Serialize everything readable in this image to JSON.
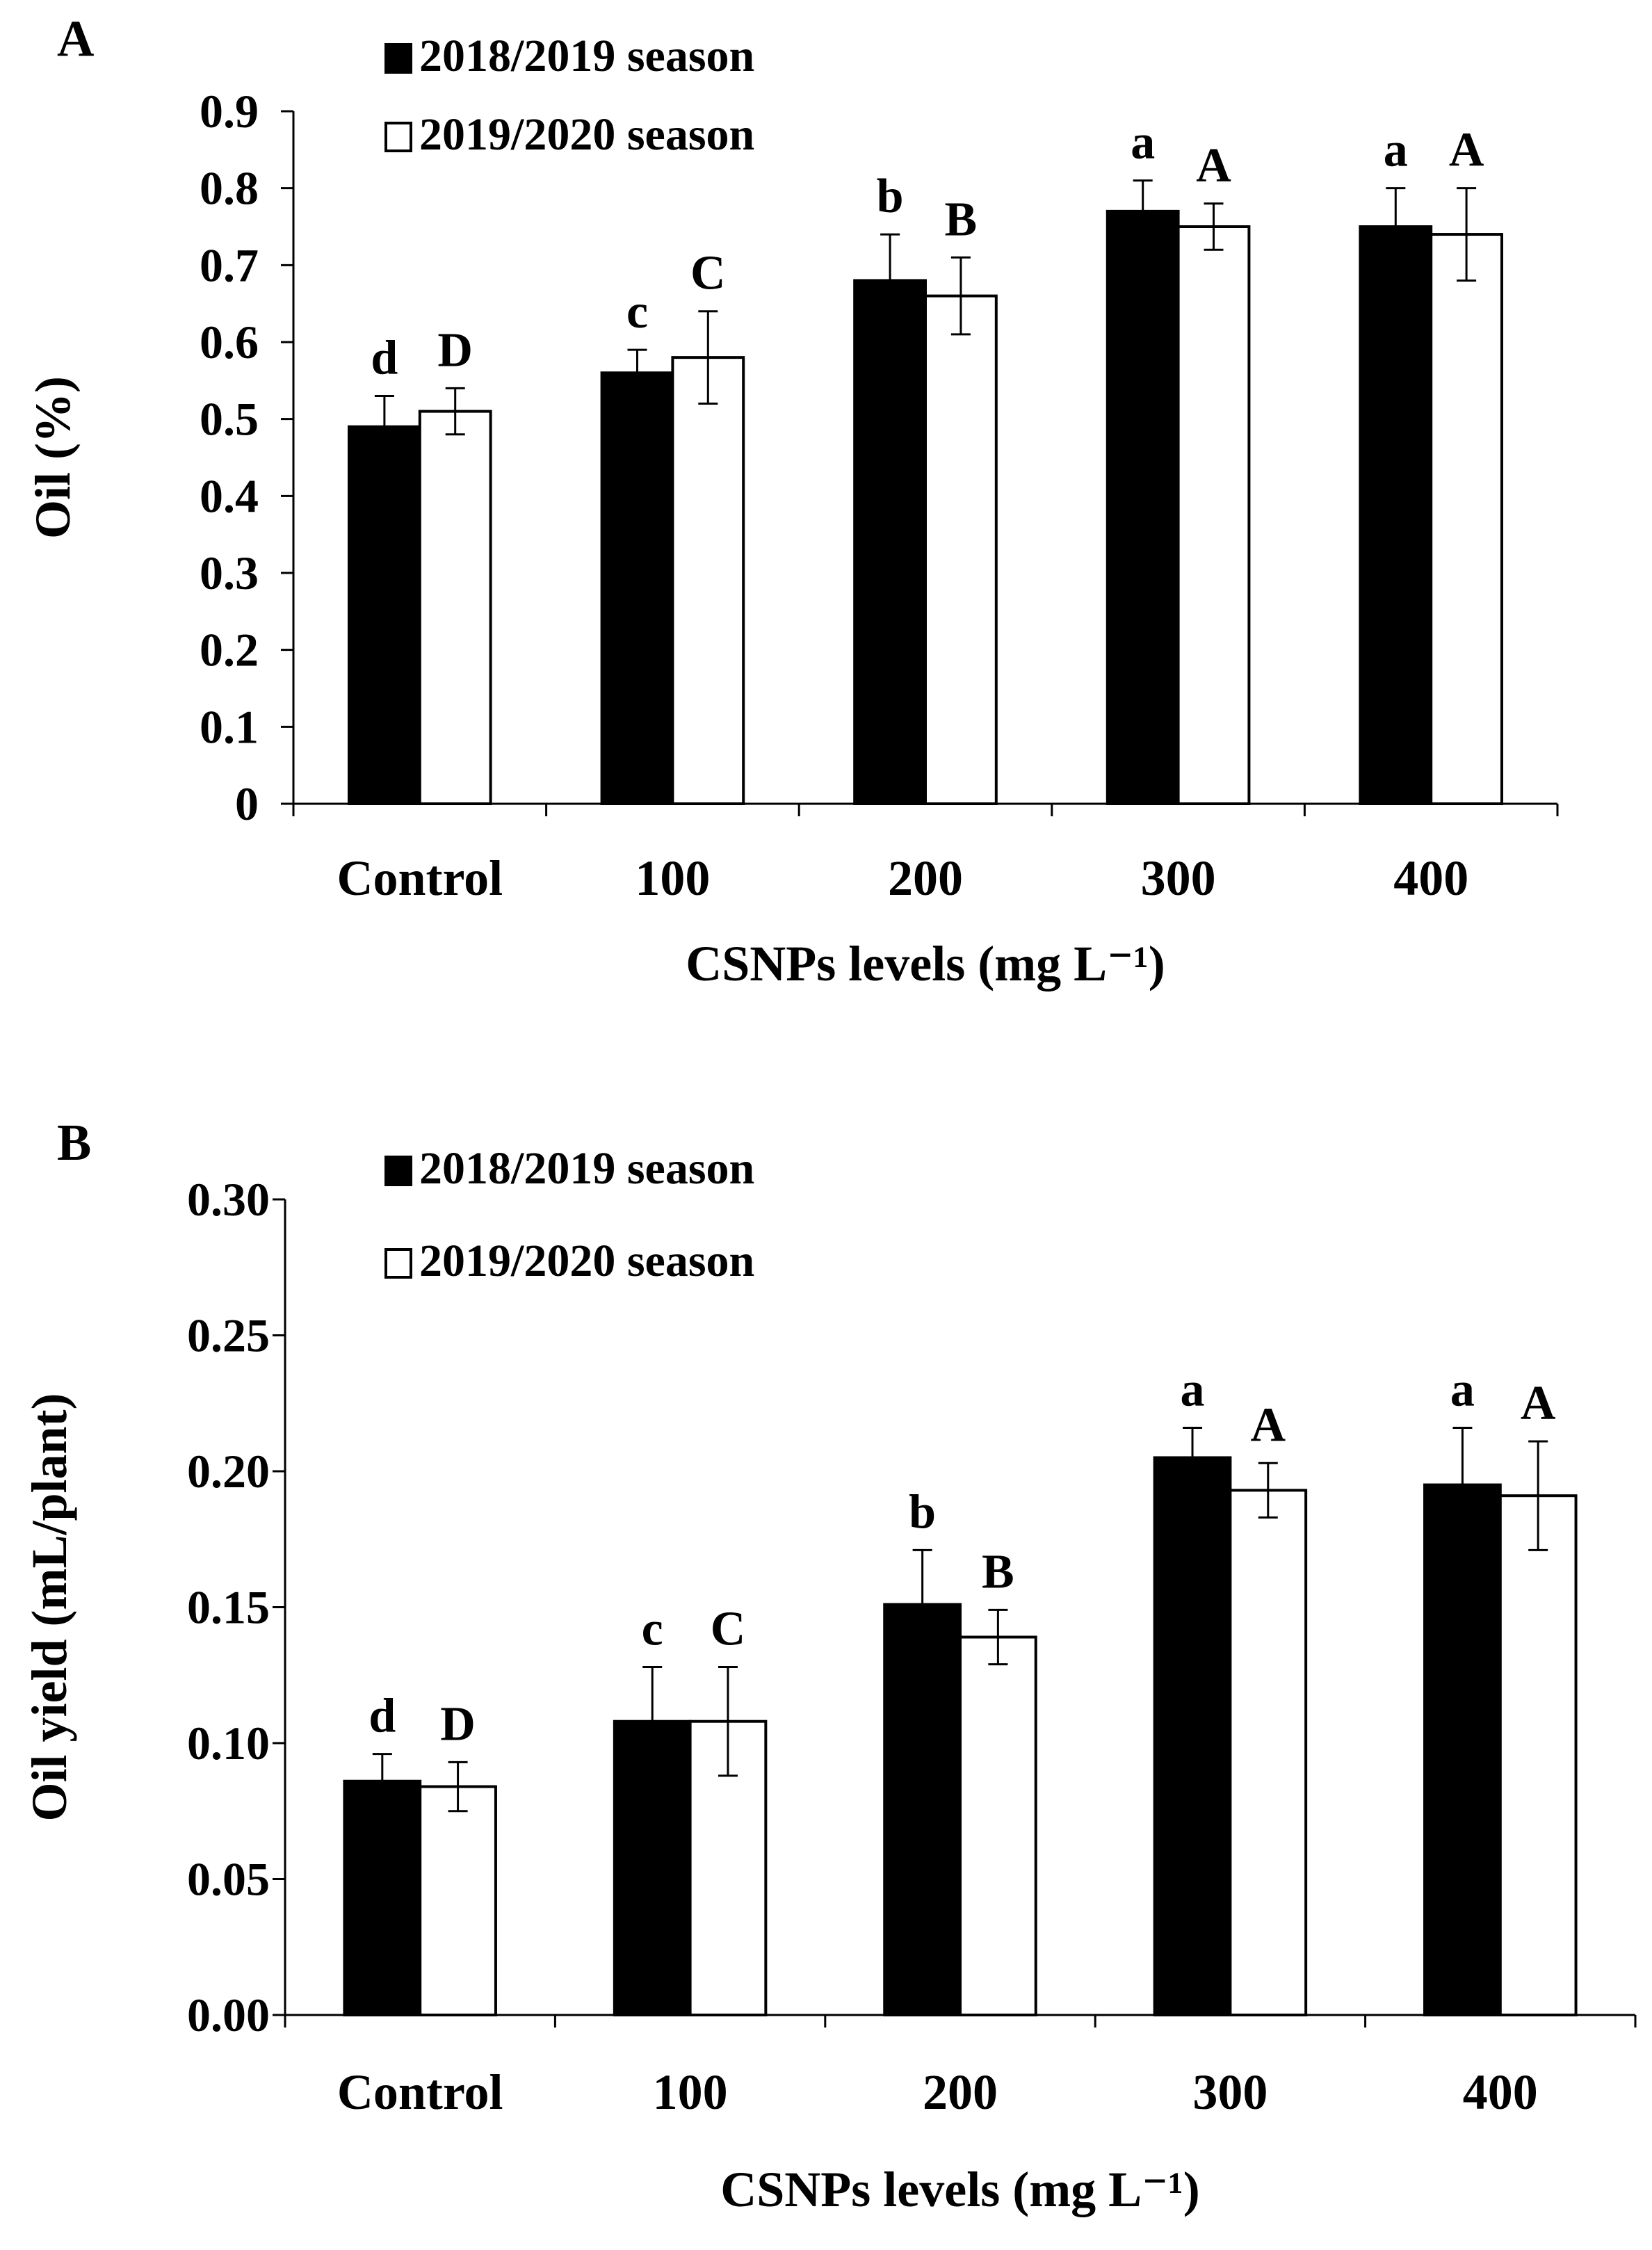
{
  "chart_data": [
    {
      "panel_label": "A",
      "type": "bar",
      "categories": [
        "Control",
        "100",
        "200",
        "300",
        "400"
      ],
      "series": [
        {
          "name": "2018/2019 season",
          "fill": "#000000",
          "values": [
            0.49,
            0.56,
            0.68,
            0.77,
            0.75
          ],
          "errors": [
            0.04,
            0.03,
            0.06,
            0.04,
            0.05
          ],
          "letters": [
            "d",
            "c",
            "b",
            "a",
            "a"
          ]
        },
        {
          "name": "2019/2020 season",
          "fill": "#ffffff",
          "values": [
            0.51,
            0.58,
            0.66,
            0.75,
            0.74
          ],
          "errors": [
            0.03,
            0.06,
            0.05,
            0.03,
            0.06
          ],
          "letters": [
            "D",
            "C",
            "B",
            "A",
            "A"
          ]
        }
      ],
      "xlabel": "CSNPs levels (mg L⁻¹)",
      "ylabel": "Oil (%)",
      "ylim": [
        0,
        0.9
      ],
      "yticks": [
        "0",
        "0.1",
        "0.2",
        "0.3",
        "0.4",
        "0.5",
        "0.6",
        "0.7",
        "0.8",
        "0.9"
      ],
      "legend": "top-left",
      "grid": false
    },
    {
      "panel_label": "B",
      "type": "bar",
      "categories": [
        "Control",
        "100",
        "200",
        "300",
        "400"
      ],
      "series": [
        {
          "name": "2018/2019 season",
          "fill": "#000000",
          "values": [
            0.086,
            0.108,
            0.151,
            0.205,
            0.195
          ],
          "errors": [
            0.01,
            0.02,
            0.02,
            0.011,
            0.021
          ],
          "letters": [
            "d",
            "c",
            "b",
            "a",
            "a"
          ]
        },
        {
          "name": "2019/2020 season",
          "fill": "#ffffff",
          "values": [
            0.084,
            0.108,
            0.139,
            0.193,
            0.191
          ],
          "errors": [
            0.009,
            0.02,
            0.01,
            0.01,
            0.02
          ],
          "letters": [
            "D",
            "C",
            "B",
            "A",
            "A"
          ]
        }
      ],
      "xlabel": "CSNPs levels (mg L⁻¹)",
      "ylabel": "Oil yield (mL/plant)",
      "ylim": [
        0,
        0.3
      ],
      "yticks": [
        "0.00",
        "0.05",
        "0.10",
        "0.15",
        "0.20",
        "0.25",
        "0.30"
      ],
      "legend": "top-left",
      "grid": false
    }
  ]
}
